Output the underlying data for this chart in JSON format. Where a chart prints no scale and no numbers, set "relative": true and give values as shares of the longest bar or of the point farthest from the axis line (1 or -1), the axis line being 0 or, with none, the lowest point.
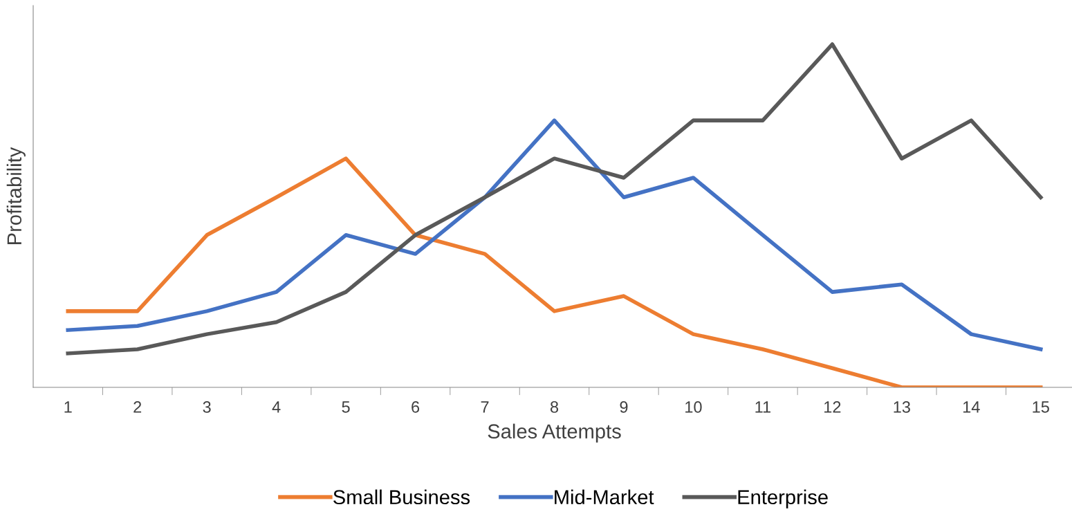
{
  "chart_data": {
    "type": "line",
    "relative": true,
    "xlabel": "Sales Attempts",
    "ylabel": "Profitability",
    "categories": [
      "1",
      "2",
      "3",
      "4",
      "5",
      "6",
      "7",
      "8",
      "9",
      "10",
      "11",
      "12",
      "13",
      "14",
      "15"
    ],
    "series": [
      {
        "name": "Small Business",
        "color": "#ed7d31",
        "values": [
          0.222,
          0.222,
          0.444,
          0.554,
          0.667,
          0.444,
          0.389,
          0.222,
          0.266,
          0.155,
          0.111,
          0.056,
          0,
          0,
          0
        ]
      },
      {
        "name": "Mid-Market",
        "color": "#4472c4",
        "values": [
          0.167,
          0.179,
          0.222,
          0.278,
          0.444,
          0.389,
          0.554,
          0.778,
          0.554,
          0.611,
          0.444,
          0.278,
          0.3,
          0.155,
          0.111
        ]
      },
      {
        "name": "Enterprise",
        "color": "#595959",
        "values": [
          0.099,
          0.111,
          0.155,
          0.19,
          0.278,
          0.444,
          0.554,
          0.667,
          0.611,
          0.778,
          0.778,
          1,
          0.667,
          0.778,
          0.554
        ]
      }
    ],
    "legend": "bottom",
    "grid": false,
    "marker": "none",
    "line_style": "solid"
  }
}
